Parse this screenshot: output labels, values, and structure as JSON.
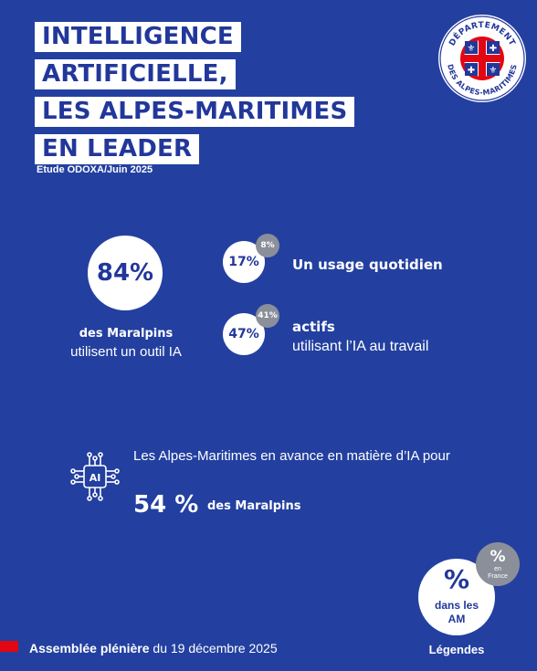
{
  "title": {
    "lines": [
      "INTELLIGENCE",
      "ARTIFICIELLE,",
      "LES ALPES-MARITIMES",
      "EN LEADER"
    ]
  },
  "source": "Etude ODOXA/Juin 2025",
  "logo": {
    "top_text": "DÉPARTEMENT",
    "bottom_text": "DES ALPES-MARITIMES",
    "colors": {
      "ring": "#22379a",
      "red": "#e30613",
      "white": "#ffffff"
    }
  },
  "main_stat": {
    "value": "84%",
    "caption_strong": "des Maralpins",
    "caption": "utilisent un outil IA"
  },
  "stats": [
    {
      "value": "17%",
      "france": "8%",
      "label": "Un usage quotidien"
    },
    {
      "value": "47%",
      "france": "41%",
      "label_strong": "actifs",
      "label": "utilisant l’IA au travail"
    }
  ],
  "advance": {
    "icon": "ai-chip-icon",
    "text": "Les Alpes-Maritimes en avance en matière d’IA pour",
    "value": "54 %",
    "value_label": "des Maralpins"
  },
  "legend": {
    "am_symbol": "%",
    "am_text_1": "dans les",
    "am_text_2": "AM",
    "fr_symbol": "%",
    "fr_text_1": "en",
    "fr_text_2": "France",
    "caption": "Légendes"
  },
  "footer": {
    "strong": "Assemblée plénière",
    "text": " du 19 décembre 2025"
  },
  "colors": {
    "background": "#2340a0",
    "accent_red": "#e30613",
    "grey": "#8a8f99"
  }
}
